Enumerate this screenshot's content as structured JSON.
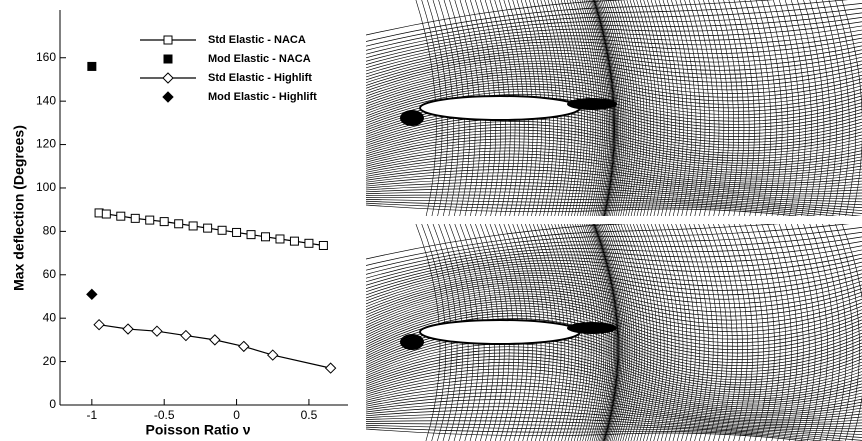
{
  "chart_data": {
    "type": "line",
    "xlabel": "Poisson Ratio ν",
    "ylabel": "Max deflection (Degrees)",
    "xlim": [
      -1.22,
      0.77
    ],
    "xticks": [
      -1,
      -0.5,
      0,
      0.5
    ],
    "ylim": [
      0,
      182
    ],
    "yticks": [
      0,
      20,
      40,
      60,
      80,
      100,
      120,
      140,
      160
    ],
    "legend": "upper right",
    "series": [
      {
        "name": "Std Elastic - NACA",
        "color": "#000000",
        "marker": "square-open",
        "line": true,
        "x": [
          -0.95,
          -0.9,
          -0.8,
          -0.7,
          -0.6,
          -0.5,
          -0.4,
          -0.3,
          -0.2,
          -0.1,
          0,
          0.1,
          0.2,
          0.3,
          0.4,
          0.5,
          0.6
        ],
        "values": [
          88.5,
          88,
          87,
          86,
          85.2,
          84.5,
          83.5,
          82.5,
          81.5,
          80.5,
          79.5,
          78.5,
          77.5,
          76.5,
          75.5,
          74.5,
          73.5
        ]
      },
      {
        "name": "Mod Elastic - NACA",
        "color": "#000000",
        "marker": "square-filled",
        "line": false,
        "x": [
          -1
        ],
        "values": [
          156
        ]
      },
      {
        "name": "Std Elastic - Highlift",
        "color": "#000000",
        "marker": "diamond-open",
        "line": true,
        "x": [
          -0.95,
          -0.75,
          -0.55,
          -0.35,
          -0.15,
          0.05,
          0.25,
          0.65
        ],
        "values": [
          37,
          35,
          34,
          32,
          30,
          27,
          23,
          17
        ]
      },
      {
        "name": "Mod Elastic - Highlift",
        "color": "#000000",
        "marker": "diamond-filled",
        "line": false,
        "x": [
          -1
        ],
        "values": [
          51
        ]
      }
    ]
  }
}
